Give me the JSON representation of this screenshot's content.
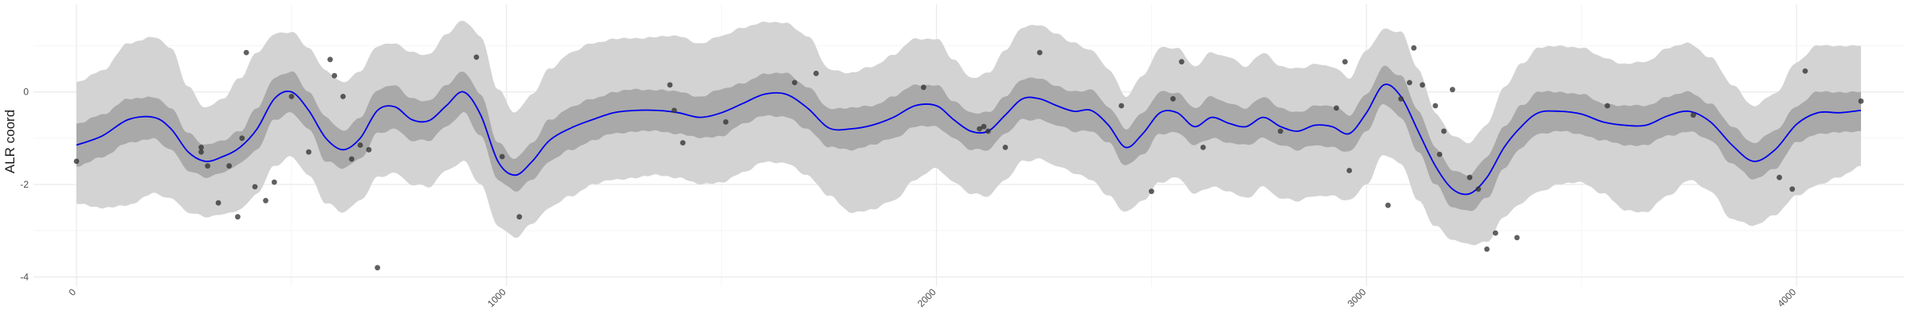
{
  "chart_data": {
    "type": "line",
    "title": "",
    "xlabel": "",
    "ylabel": "ALR coord",
    "xlim": [
      -100,
      4250
    ],
    "ylim": [
      -4.2,
      1.9
    ],
    "x_ticks": [
      {
        "value": 0,
        "label": "0"
      },
      {
        "value": 1000,
        "label": "1000"
      },
      {
        "value": 2000,
        "label": "2000"
      },
      {
        "value": 3000,
        "label": "3000"
      },
      {
        "value": 4000,
        "label": "4000"
      }
    ],
    "y_ticks": [
      {
        "value": -4,
        "label": "-4"
      },
      {
        "value": -2,
        "label": "-2"
      },
      {
        "value": 0,
        "label": "0"
      }
    ],
    "grid": true,
    "legend": "none",
    "colors": {
      "mean_line": "#0000ee",
      "inner_band": "#a9a9a9",
      "outer_band": "#d3d3d3",
      "points": "#333333",
      "grid_major": "#ebebeb",
      "grid_minor": "#f5f5f5"
    },
    "series": [
      {
        "kind": "mean",
        "x": [
          0,
          60,
          120,
          180,
          220,
          260,
          300,
          340,
          380,
          420,
          460,
          500,
          540,
          580,
          620,
          660,
          700,
          740,
          780,
          820,
          860,
          900,
          940,
          980,
          1020,
          1060,
          1100,
          1150,
          1200,
          1250,
          1300,
          1350,
          1400,
          1450,
          1500,
          1550,
          1600,
          1650,
          1700,
          1750,
          1800,
          1850,
          1900,
          1950,
          2000,
          2040,
          2080,
          2120,
          2160,
          2200,
          2240,
          2280,
          2320,
          2360,
          2400,
          2440,
          2480,
          2520,
          2560,
          2600,
          2640,
          2680,
          2720,
          2760,
          2800,
          2840,
          2880,
          2920,
          2960,
          3000,
          3040,
          3080,
          3120,
          3160,
          3200,
          3240,
          3280,
          3320,
          3360,
          3400,
          3450,
          3500,
          3550,
          3600,
          3650,
          3700,
          3750,
          3800,
          3850,
          3900,
          3950,
          4000,
          4050,
          4100,
          4150
        ],
        "y": [
          -1.15,
          -0.95,
          -0.6,
          -0.55,
          -0.8,
          -1.3,
          -1.5,
          -1.4,
          -1.2,
          -0.8,
          -0.15,
          0.0,
          -0.4,
          -1.0,
          -1.25,
          -1.0,
          -0.4,
          -0.32,
          -0.6,
          -0.62,
          -0.3,
          0.0,
          -0.5,
          -1.5,
          -1.8,
          -1.5,
          -1.05,
          -0.78,
          -0.6,
          -0.45,
          -0.4,
          -0.4,
          -0.45,
          -0.55,
          -0.45,
          -0.25,
          -0.05,
          -0.05,
          -0.35,
          -0.78,
          -0.8,
          -0.72,
          -0.55,
          -0.3,
          -0.3,
          -0.6,
          -0.85,
          -0.85,
          -0.5,
          -0.15,
          -0.15,
          -0.3,
          -0.42,
          -0.4,
          -0.72,
          -1.2,
          -0.9,
          -0.45,
          -0.45,
          -0.75,
          -0.55,
          -0.68,
          -0.75,
          -0.55,
          -0.75,
          -0.85,
          -0.72,
          -0.75,
          -0.9,
          -0.45,
          0.15,
          -0.1,
          -0.85,
          -1.6,
          -2.1,
          -2.2,
          -1.85,
          -1.2,
          -0.75,
          -0.45,
          -0.42,
          -0.48,
          -0.65,
          -0.72,
          -0.72,
          -0.52,
          -0.42,
          -0.65,
          -1.15,
          -1.5,
          -1.25,
          -0.7,
          -0.45,
          -0.45,
          -0.4
        ],
        "inner_lower": [
          -1.6,
          -1.4,
          -1.1,
          -1.02,
          -1.25,
          -1.7,
          -1.85,
          -1.75,
          -1.55,
          -1.25,
          -0.6,
          -0.45,
          -0.8,
          -1.5,
          -1.65,
          -1.45,
          -0.9,
          -0.8,
          -1.05,
          -1.05,
          -0.75,
          -0.45,
          -0.95,
          -1.9,
          -2.15,
          -1.9,
          -1.5,
          -1.25,
          -1.05,
          -0.9,
          -0.85,
          -0.85,
          -0.9,
          -1.0,
          -0.95,
          -0.7,
          -0.5,
          -0.55,
          -0.8,
          -1.2,
          -1.25,
          -1.15,
          -1.0,
          -0.75,
          -0.75,
          -1.0,
          -1.25,
          -1.25,
          -0.9,
          -0.6,
          -0.6,
          -0.72,
          -0.85,
          -0.85,
          -1.1,
          -1.6,
          -1.35,
          -0.9,
          -0.88,
          -1.15,
          -1.0,
          -1.1,
          -1.15,
          -1.0,
          -1.15,
          -1.25,
          -1.15,
          -1.2,
          -1.3,
          -0.85,
          -0.25,
          -0.55,
          -1.3,
          -2.0,
          -2.5,
          -2.58,
          -2.3,
          -1.65,
          -1.2,
          -0.9,
          -0.85,
          -0.92,
          -1.05,
          -1.15,
          -1.15,
          -0.95,
          -0.85,
          -1.05,
          -1.55,
          -1.9,
          -1.65,
          -1.1,
          -0.9,
          -0.88,
          -0.85
        ],
        "inner_upper": [
          -0.7,
          -0.5,
          -0.15,
          -0.1,
          -0.35,
          -0.9,
          -1.15,
          -1.05,
          -0.85,
          -0.35,
          0.3,
          0.45,
          0.0,
          -0.55,
          -0.85,
          -0.55,
          0.05,
          0.15,
          -0.15,
          -0.2,
          0.15,
          0.45,
          -0.05,
          -1.1,
          -1.45,
          -1.1,
          -0.6,
          -0.33,
          -0.15,
          0.0,
          0.05,
          0.05,
          0.0,
          -0.1,
          0.05,
          0.2,
          0.38,
          0.42,
          0.1,
          -0.35,
          -0.35,
          -0.3,
          -0.1,
          0.15,
          0.15,
          -0.2,
          -0.45,
          -0.45,
          -0.1,
          0.28,
          0.3,
          0.12,
          0.0,
          0.05,
          -0.32,
          -0.8,
          -0.45,
          0.0,
          -0.02,
          -0.35,
          -0.1,
          -0.25,
          -0.35,
          -0.1,
          -0.35,
          -0.45,
          -0.3,
          -0.3,
          -0.5,
          -0.05,
          0.55,
          0.35,
          -0.4,
          -1.2,
          -1.7,
          -1.8,
          -1.4,
          -0.75,
          -0.3,
          0.0,
          0.0,
          -0.05,
          -0.25,
          -0.3,
          -0.3,
          -0.1,
          0.0,
          -0.25,
          -0.75,
          -1.1,
          -0.85,
          -0.3,
          0.0,
          0.0,
          0.0
        ],
        "outer_lower": [
          -2.4,
          -2.5,
          -2.45,
          -2.2,
          -2.3,
          -2.6,
          -2.7,
          -2.65,
          -2.55,
          -2.2,
          -1.6,
          -1.4,
          -1.8,
          -2.4,
          -2.6,
          -2.35,
          -1.85,
          -1.75,
          -2.0,
          -2.05,
          -1.7,
          -1.5,
          -2.0,
          -2.9,
          -3.15,
          -2.85,
          -2.5,
          -2.25,
          -2.0,
          -1.9,
          -1.85,
          -1.8,
          -1.85,
          -2.0,
          -1.95,
          -1.75,
          -1.5,
          -1.55,
          -1.8,
          -2.25,
          -2.6,
          -2.55,
          -2.35,
          -1.9,
          -1.65,
          -1.95,
          -2.2,
          -2.25,
          -1.9,
          -1.5,
          -1.45,
          -1.6,
          -1.75,
          -1.9,
          -2.25,
          -2.6,
          -2.35,
          -1.95,
          -1.85,
          -2.2,
          -2.05,
          -2.15,
          -2.3,
          -2.05,
          -2.3,
          -2.35,
          -2.25,
          -2.25,
          -2.35,
          -2.0,
          -1.35,
          -1.55,
          -2.35,
          -2.9,
          -3.2,
          -3.3,
          -3.25,
          -2.7,
          -2.4,
          -2.15,
          -2.0,
          -1.95,
          -2.2,
          -2.55,
          -2.6,
          -2.25,
          -1.9,
          -2.15,
          -2.75,
          -2.9,
          -2.65,
          -2.25,
          -2.0,
          -1.85,
          -1.6
        ],
        "outer_upper": [
          0.2,
          0.45,
          1.05,
          1.2,
          0.95,
          0.1,
          -0.35,
          -0.15,
          0.3,
          0.85,
          1.25,
          1.3,
          0.95,
          0.45,
          0.2,
          0.45,
          1.0,
          1.05,
          0.85,
          0.8,
          1.25,
          1.55,
          1.2,
          0.05,
          -0.45,
          -0.05,
          0.5,
          0.85,
          1.05,
          1.15,
          1.15,
          1.2,
          1.2,
          1.05,
          1.2,
          1.4,
          1.5,
          1.5,
          1.2,
          0.5,
          0.4,
          0.55,
          0.8,
          1.15,
          1.15,
          0.7,
          0.3,
          0.4,
          0.9,
          1.4,
          1.45,
          1.25,
          1.05,
          0.9,
          0.5,
          -0.1,
          0.35,
          0.95,
          0.95,
          0.55,
          0.85,
          0.75,
          0.55,
          0.85,
          0.55,
          0.5,
          0.6,
          0.55,
          0.3,
          0.9,
          1.35,
          1.3,
          0.5,
          -0.45,
          -0.95,
          -1.1,
          -0.7,
          0.1,
          0.6,
          0.95,
          1.0,
          0.95,
          0.75,
          0.6,
          0.65,
          0.95,
          1.05,
          0.75,
          0.15,
          -0.3,
          -0.05,
          0.65,
          1.0,
          1.0,
          1.0
        ]
      },
      {
        "kind": "observations",
        "x": [
          0,
          290,
          290,
          305,
          330,
          355,
          375,
          385,
          395,
          415,
          440,
          460,
          500,
          540,
          590,
          600,
          620,
          640,
          660,
          680,
          700,
          930,
          990,
          1030,
          1380,
          1390,
          1410,
          1510,
          1670,
          1720,
          1970,
          2100,
          2110,
          2120,
          2160,
          2240,
          2430,
          2500,
          2550,
          2570,
          2620,
          2800,
          2930,
          2950,
          2960,
          3050,
          3080,
          3100,
          3110,
          3130,
          3160,
          3170,
          3180,
          3200,
          3240,
          3260,
          3280,
          3300,
          3350,
          3560,
          3760,
          3960,
          3990,
          4020,
          4150
        ],
        "y": [
          -1.5,
          -1.2,
          -1.3,
          -1.6,
          -2.4,
          -1.6,
          -2.7,
          -1.0,
          0.85,
          -2.05,
          -2.35,
          -1.95,
          -0.1,
          -1.3,
          0.7,
          0.35,
          -0.1,
          -1.45,
          -1.15,
          -1.25,
          -3.8,
          0.75,
          -1.4,
          -2.7,
          0.15,
          -0.4,
          -1.1,
          -0.65,
          0.2,
          0.4,
          0.1,
          -0.8,
          -0.75,
          -0.85,
          -1.2,
          0.85,
          -0.3,
          -2.15,
          -0.15,
          0.65,
          -1.2,
          -0.85,
          -0.35,
          0.65,
          -1.7,
          -2.45,
          -0.15,
          0.2,
          0.95,
          0.15,
          -0.3,
          -1.35,
          -0.85,
          0.05,
          -1.85,
          -2.1,
          -3.4,
          -3.05,
          -3.15,
          -0.3,
          -0.5,
          -1.85,
          -2.1,
          0.45,
          -0.2
        ]
      }
    ]
  }
}
